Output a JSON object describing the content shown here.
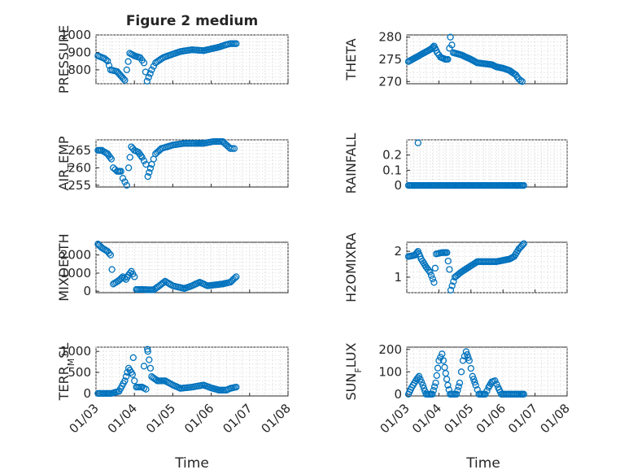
{
  "figure": {
    "title": "Figure 2 medium"
  },
  "colors": {
    "marker": "#0072BD",
    "axis": "#262626",
    "grid": "#d9d9d9"
  },
  "chart_data": [
    {
      "type": "scatter",
      "ylabel": "PRESSURE",
      "ylim": [
        720,
        1000
      ],
      "yticks": [
        800,
        900,
        1000
      ],
      "yticklabels": [
        "800",
        "900",
        "1000"
      ],
      "title": "Figure 2 medium",
      "grid": true,
      "curve": [
        [
          3.05,
          880
        ],
        [
          3.22,
          865
        ],
        [
          3.3,
          850
        ],
        [
          3.38,
          800
        ],
        [
          3.55,
          790
        ],
        [
          3.65,
          765
        ],
        [
          3.75,
          740
        ],
        [
          3.8,
          800
        ],
        [
          3.88,
          895
        ],
        [
          4.0,
          880
        ],
        [
          4.15,
          870
        ],
        [
          4.25,
          840
        ],
        [
          4.33,
          735
        ],
        [
          4.45,
          800
        ],
        [
          4.55,
          840
        ],
        [
          4.75,
          870
        ],
        [
          5.0,
          890
        ],
        [
          5.2,
          905
        ],
        [
          5.5,
          915
        ],
        [
          5.8,
          910
        ],
        [
          6.0,
          920
        ],
        [
          6.2,
          930
        ],
        [
          6.4,
          945
        ],
        [
          6.5,
          950
        ],
        [
          6.65,
          950
        ]
      ]
    },
    {
      "type": "scatter",
      "ylabel": "THETA",
      "ylim": [
        269.5,
        280.5
      ],
      "yticks": [
        270,
        275,
        280
      ],
      "yticklabels": [
        "270",
        "275",
        "280"
      ],
      "grid": true,
      "curve": [
        [
          3.05,
          274.5
        ],
        [
          3.3,
          275.5
        ],
        [
          3.55,
          276.5
        ],
        [
          3.75,
          277.3
        ],
        [
          3.85,
          278
        ],
        [
          3.95,
          276.5
        ],
        [
          4.05,
          275.5
        ],
        [
          4.2,
          275
        ],
        [
          4.28,
          275
        ],
        [
          4.33,
          277.5
        ],
        [
          4.36,
          280
        ],
        [
          4.45,
          276.5
        ],
        [
          4.7,
          276
        ],
        [
          5.0,
          275
        ],
        [
          5.2,
          274.2
        ],
        [
          5.45,
          274
        ],
        [
          5.65,
          273.8
        ],
        [
          5.8,
          273.3
        ],
        [
          6.0,
          273
        ],
        [
          6.2,
          272.5
        ],
        [
          6.4,
          271.5
        ],
        [
          6.5,
          270.5
        ],
        [
          6.6,
          270
        ]
      ]
    },
    {
      "type": "scatter",
      "ylabel": "AIR_TEMP",
      "ylabel_main": "AIR",
      "ylabel_sub": "T",
      "ylabel_rest": "EMP",
      "ylim": [
        254.5,
        268
      ],
      "yticks": [
        255,
        260,
        265
      ],
      "yticklabels": [
        "255",
        "260",
        "265"
      ],
      "grid": true,
      "curve": [
        [
          3.05,
          265
        ],
        [
          3.15,
          265
        ],
        [
          3.3,
          264
        ],
        [
          3.4,
          262.5
        ],
        [
          3.45,
          260
        ],
        [
          3.55,
          259
        ],
        [
          3.65,
          259
        ],
        [
          3.7,
          257
        ],
        [
          3.75,
          256
        ],
        [
          3.8,
          255
        ],
        [
          3.85,
          260
        ],
        [
          3.92,
          266
        ],
        [
          4.0,
          265
        ],
        [
          4.1,
          264.5
        ],
        [
          4.2,
          263
        ],
        [
          4.3,
          261
        ],
        [
          4.35,
          257.5
        ],
        [
          4.45,
          261
        ],
        [
          4.55,
          264
        ],
        [
          4.7,
          265.5
        ],
        [
          5.0,
          266.5
        ],
        [
          5.3,
          267
        ],
        [
          5.6,
          267
        ],
        [
          5.8,
          267
        ],
        [
          6.05,
          267.5
        ],
        [
          6.3,
          267.5
        ],
        [
          6.5,
          265.5
        ],
        [
          6.6,
          265.5
        ]
      ]
    },
    {
      "type": "scatter",
      "ylabel": "RAINFALL",
      "ylim": [
        -0.01,
        0.3
      ],
      "yticks": [
        0,
        0.1,
        0.2
      ],
      "yticklabels": [
        "0",
        "0.1",
        "0.2"
      ],
      "grid": true,
      "curve": [
        [
          3.05,
          0
        ],
        [
          6.65,
          0
        ]
      ],
      "extra_points": [
        [
          3.35,
          0.28
        ]
      ]
    },
    {
      "type": "scatter",
      "ylabel": "MIXDEPTH",
      "ylim": [
        -80,
        2700
      ],
      "yticks": [
        0,
        1000,
        2000
      ],
      "yticklabels": [
        "0",
        "1000",
        "2000"
      ],
      "grid": true,
      "curve": [
        [
          3.05,
          2600
        ],
        [
          3.15,
          2400
        ],
        [
          3.3,
          2200
        ],
        [
          3.38,
          2000
        ],
        [
          3.45,
          400
        ],
        [
          3.6,
          600
        ],
        [
          3.7,
          800
        ],
        [
          3.78,
          650
        ],
        [
          3.85,
          900
        ],
        [
          3.92,
          1100
        ],
        [
          4.0,
          800
        ],
        [
          4.05,
          100
        ],
        [
          4.2,
          100
        ],
        [
          4.35,
          80
        ],
        [
          4.5,
          80
        ],
        [
          4.65,
          300
        ],
        [
          4.8,
          550
        ],
        [
          5.0,
          300
        ],
        [
          5.3,
          150
        ],
        [
          5.5,
          300
        ],
        [
          5.7,
          500
        ],
        [
          5.9,
          300
        ],
        [
          6.1,
          350
        ],
        [
          6.3,
          400
        ],
        [
          6.5,
          500
        ],
        [
          6.65,
          800
        ]
      ]
    },
    {
      "type": "scatter",
      "ylabel": "H2OMIXRA",
      "ylim": [
        0.4,
        2.35
      ],
      "yticks": [
        1,
        2
      ],
      "yticklabels": [
        "1",
        "2"
      ],
      "grid": true,
      "curve": [
        [
          3.05,
          1.8
        ],
        [
          3.25,
          1.85
        ],
        [
          3.35,
          2.0
        ],
        [
          3.45,
          1.7
        ],
        [
          3.6,
          1.4
        ],
        [
          3.72,
          1.2
        ],
        [
          3.85,
          0.8
        ],
        [
          3.92,
          1.9
        ],
        [
          4.1,
          1.95
        ],
        [
          4.25,
          1.95
        ],
        [
          4.33,
          1.3
        ],
        [
          4.37,
          0.5
        ],
        [
          4.5,
          1.0
        ],
        [
          4.7,
          1.2
        ],
        [
          4.95,
          1.4
        ],
        [
          5.2,
          1.6
        ],
        [
          5.5,
          1.6
        ],
        [
          5.8,
          1.6
        ],
        [
          6.0,
          1.65
        ],
        [
          6.2,
          1.7
        ],
        [
          6.35,
          1.8
        ],
        [
          6.5,
          2.1
        ],
        [
          6.65,
          2.3
        ]
      ]
    },
    {
      "type": "scatter",
      "ylabel": "TERR_MSL",
      "ylabel_main": "TERR",
      "ylabel_sub": "M",
      "ylabel_rest": "SL",
      "ylim": [
        -60,
        1100
      ],
      "yticks": [
        0,
        500,
        1000
      ],
      "yticklabels": [
        "0",
        "500",
        "1000"
      ],
      "grid": true,
      "curve": [
        [
          3.05,
          0
        ],
        [
          3.4,
          0
        ],
        [
          3.6,
          50
        ],
        [
          3.75,
          300
        ],
        [
          3.85,
          600
        ],
        [
          3.95,
          450
        ],
        [
          4.05,
          150
        ],
        [
          4.2,
          150
        ],
        [
          4.3,
          100
        ],
        [
          4.35,
          1000
        ],
        [
          4.45,
          400
        ],
        [
          4.6,
          300
        ],
        [
          4.8,
          300
        ],
        [
          5.0,
          200
        ],
        [
          5.2,
          120
        ],
        [
          5.5,
          150
        ],
        [
          5.8,
          200
        ],
        [
          6.0,
          130
        ],
        [
          6.2,
          80
        ],
        [
          6.4,
          80
        ],
        [
          6.5,
          120
        ],
        [
          6.65,
          150
        ]
      ],
      "extra_points": [
        [
          3.97,
          850
        ],
        [
          4.34,
          1050
        ],
        [
          4.25,
          650
        ]
      ]
    },
    {
      "type": "scatter",
      "ylabel": "SUN_FLUX",
      "ylabel_main": "SUN",
      "ylabel_sub": "F",
      "ylabel_rest": "LUX",
      "ylim": [
        -8,
        210
      ],
      "yticks": [
        0,
        100,
        200
      ],
      "yticklabels": [
        "0",
        "100",
        "200"
      ],
      "grid": true,
      "curve": [
        [
          3.05,
          0
        ],
        [
          3.15,
          30
        ],
        [
          3.28,
          60
        ],
        [
          3.38,
          80
        ],
        [
          3.5,
          40
        ],
        [
          3.6,
          0
        ],
        [
          3.8,
          0
        ],
        [
          3.9,
          50
        ],
        [
          4.0,
          150
        ],
        [
          4.1,
          180
        ],
        [
          4.18,
          120
        ],
        [
          4.28,
          40
        ],
        [
          4.35,
          0
        ],
        [
          4.55,
          0
        ],
        [
          4.65,
          50
        ],
        [
          4.75,
          150
        ],
        [
          4.85,
          190
        ],
        [
          4.95,
          150
        ],
        [
          5.05,
          80
        ],
        [
          5.15,
          40
        ],
        [
          5.25,
          0
        ],
        [
          5.45,
          0
        ],
        [
          5.55,
          30
        ],
        [
          5.65,
          55
        ],
        [
          5.75,
          60
        ],
        [
          5.85,
          30
        ],
        [
          5.95,
          0
        ],
        [
          6.2,
          0
        ],
        [
          6.5,
          0
        ],
        [
          6.65,
          0
        ]
      ]
    }
  ],
  "xaxis": {
    "label": "Time",
    "xlim": [
      3,
      8
    ],
    "ticks": [
      3,
      4,
      5,
      6,
      7,
      8
    ],
    "ticklabels": [
      "01/03",
      "01/04",
      "01/05",
      "01/06",
      "01/07",
      "01/08"
    ]
  }
}
